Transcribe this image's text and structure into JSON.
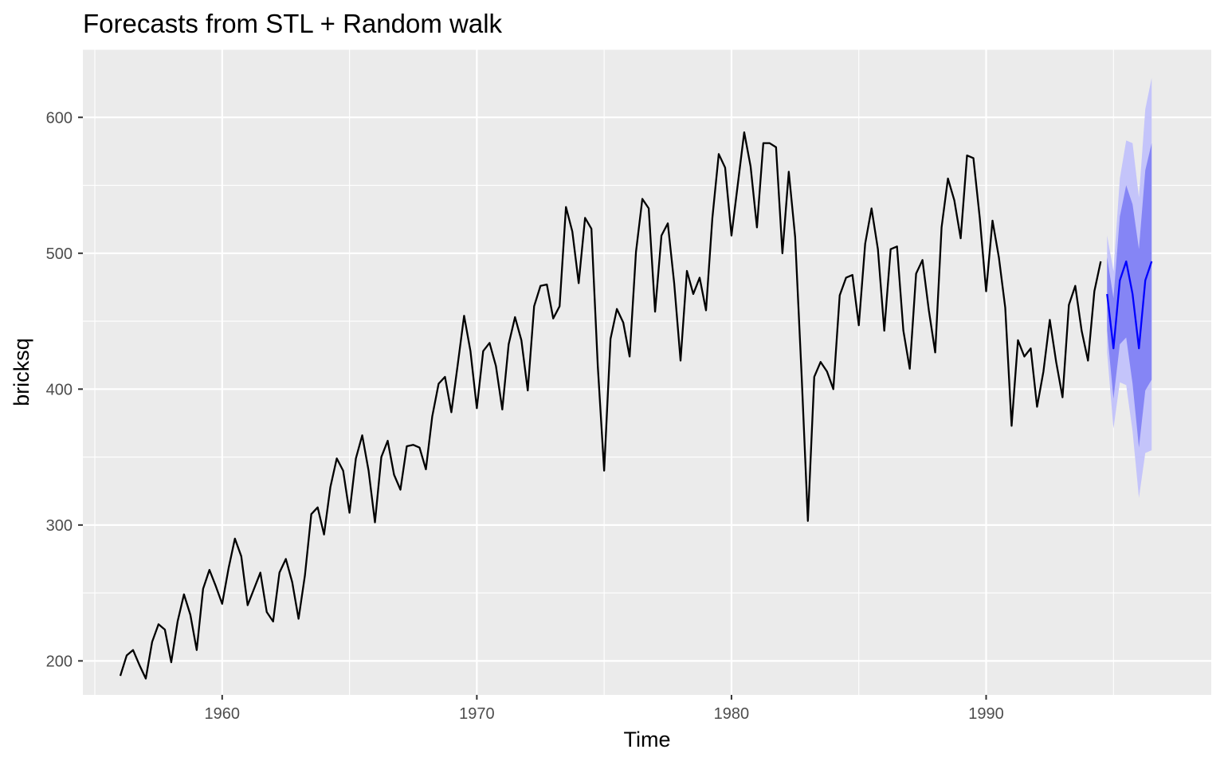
{
  "chart_data": {
    "type": "line",
    "title": "Forecasts from STL +  Random walk",
    "xlabel": "Time",
    "ylabel": "bricksq",
    "xlim": [
      1954.53,
      1998.84
    ],
    "ylim": [
      175,
      650
    ],
    "x_ticks": [
      1960,
      1970,
      1980,
      1990
    ],
    "x_tick_labels": [
      "1960",
      "1970",
      "1980",
      "1990"
    ],
    "y_ticks": [
      200,
      300,
      400,
      500,
      600
    ],
    "y_tick_labels": [
      "200",
      "300",
      "400",
      "500",
      "600"
    ],
    "grid": true,
    "legend": "none",
    "colors": {
      "panel": "#ebebeb",
      "grid": "#ffffff",
      "observed": "#000000",
      "forecast": "#0000ff",
      "pi80": "#8585f5",
      "pi95": "#c4c4fa"
    },
    "observed": {
      "start": 1956.0,
      "frequency": 4,
      "values": [
        189,
        204,
        208,
        197,
        187,
        214,
        227,
        223,
        199,
        229,
        249,
        234,
        208,
        253,
        267,
        255,
        242,
        268,
        290,
        277,
        241,
        253,
        265,
        236,
        229,
        265,
        275,
        258,
        231,
        263,
        308,
        313,
        293,
        328,
        349,
        340,
        309,
        349,
        366,
        340,
        302,
        350,
        362,
        337,
        326,
        358,
        359,
        357,
        341,
        380,
        404,
        409,
        383,
        418,
        454,
        428,
        386,
        428,
        434,
        417,
        385,
        433,
        453,
        436,
        399,
        461,
        476,
        477,
        452,
        461,
        534,
        516,
        478,
        526,
        518,
        417,
        340,
        437,
        459,
        449,
        424,
        501,
        540,
        533,
        457,
        513,
        522,
        478,
        421,
        487,
        470,
        482,
        458,
        526,
        573,
        563,
        513,
        551,
        589,
        564,
        519,
        581,
        581,
        578,
        500,
        560,
        512,
        412,
        303,
        409,
        420,
        413,
        400,
        469,
        482,
        484,
        447,
        507,
        533,
        503,
        443,
        503,
        505,
        443,
        415,
        485,
        495,
        458,
        427,
        519,
        555,
        539,
        511,
        572,
        570,
        526,
        472,
        524,
        497,
        460,
        373,
        436,
        424,
        430,
        387,
        413,
        451,
        420,
        394,
        462,
        476,
        443,
        421,
        472,
        494
      ]
    },
    "forecast": {
      "start": 1994.75,
      "frequency": 4,
      "mean": [
        470,
        430,
        480,
        494,
        470,
        430,
        480,
        494
      ],
      "lo80": [
        443,
        393,
        433,
        438,
        404,
        357,
        399,
        407
      ],
      "hi80": [
        497,
        467,
        527,
        550,
        536,
        503,
        561,
        581
      ],
      "lo95": [
        427,
        371,
        405,
        403,
        369,
        320,
        353,
        355
      ],
      "hi95": [
        513,
        487,
        555,
        583,
        581,
        541,
        606,
        629
      ]
    }
  }
}
